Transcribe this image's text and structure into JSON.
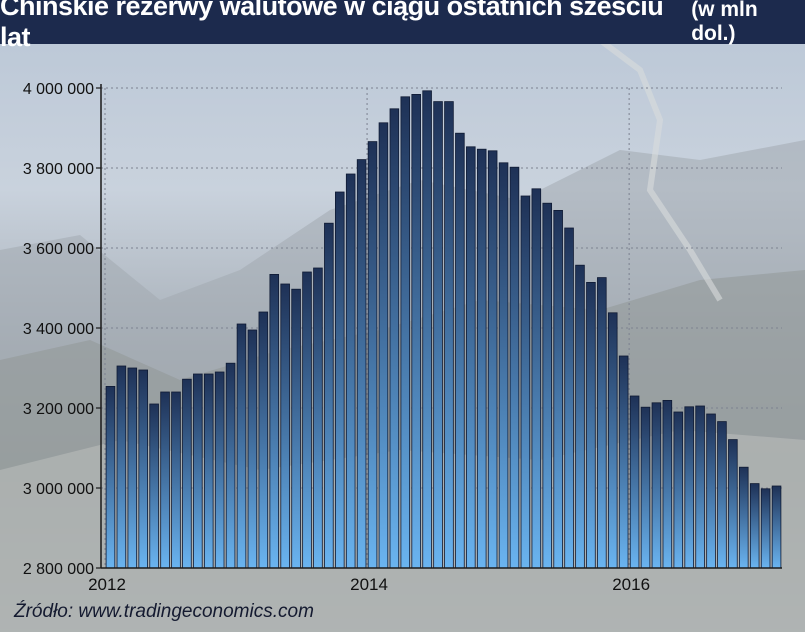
{
  "header": {
    "title": "Chińskie rezerwy walutowe w ciągu ostatnich sześciu lat",
    "unit": "(w mln dol.)"
  },
  "footer": {
    "source": "Źródło: www.tradingeconomics.com"
  },
  "colors": {
    "title_background": "#1c2a4d",
    "bar_top": "#1e3156",
    "bar_bottom": "#6ab4f0",
    "text": "#141a30"
  },
  "chart_data": {
    "type": "bar",
    "title": "Chińskie rezerwy walutowe w ciągu ostatnich sześciu lat",
    "xlabel": "",
    "ylabel": "",
    "ylim": [
      2800000,
      4000000
    ],
    "y_ticks": [
      {
        "value": 2800000,
        "label": "2 800 000"
      },
      {
        "value": 3000000,
        "label": "3 000 000"
      },
      {
        "value": 3200000,
        "label": "3 200 000"
      },
      {
        "value": 3400000,
        "label": "3 400 000"
      },
      {
        "value": 3600000,
        "label": "3 600 000"
      },
      {
        "value": 3800000,
        "label": "3 800 000"
      },
      {
        "value": 4000000,
        "label": "4 000 000"
      }
    ],
    "x_ticks": [
      {
        "index": 0,
        "label": "2012"
      },
      {
        "index": 24,
        "label": "2014"
      },
      {
        "index": 48,
        "label": "2016"
      }
    ],
    "grid": true,
    "legend": "none",
    "values": [
      3254000,
      3305000,
      3300000,
      3295000,
      3210000,
      3240000,
      3240000,
      3272000,
      3285000,
      3285000,
      3290000,
      3312000,
      3410000,
      3395000,
      3440000,
      3534000,
      3510000,
      3497000,
      3540000,
      3550000,
      3662000,
      3740000,
      3785000,
      3821000,
      3866000,
      3913000,
      3948000,
      3978000,
      3984000,
      3993000,
      3966000,
      3966000,
      3887000,
      3853000,
      3847000,
      3843000,
      3813000,
      3802000,
      3730000,
      3748000,
      3712000,
      3694000,
      3650000,
      3557000,
      3514000,
      3526000,
      3438000,
      3330000,
      3230000,
      3202000,
      3213000,
      3219000,
      3190000,
      3203000,
      3205000,
      3185000,
      3166000,
      3121000,
      3052000,
      3011000,
      2998000,
      3005000
    ]
  }
}
